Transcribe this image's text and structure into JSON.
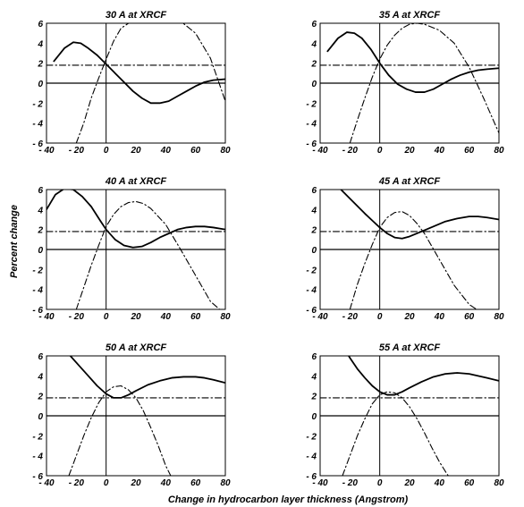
{
  "chart_data": {
    "type": "line",
    "ylabel": "Percent change",
    "xlabel": "Change in hydrocarbon layer thickness (Angstrom)",
    "xlim": [
      -40,
      80
    ],
    "ylim": [
      -6,
      6
    ],
    "xticks": [
      -40,
      -20,
      0,
      20,
      40,
      60,
      80
    ],
    "yticks": [
      6,
      4,
      2,
      0,
      -2,
      -4,
      -6
    ],
    "xtick_labels": [
      "- 40",
      "- 20",
      "0",
      "20",
      "40",
      "60",
      "80"
    ],
    "ytick_labels": [
      "6",
      "4",
      "2",
      "0",
      "- 2",
      "- 4",
      "- 6"
    ],
    "grid": false,
    "panels": [
      {
        "title": "30 A at XRCF",
        "series": [
          {
            "style": "solid",
            "x": [
              -35,
              -28,
              -22,
              -17,
              -12,
              -6,
              0,
              6,
              12,
              18,
              24,
              30,
              36,
              42,
              48,
              54,
              60,
              66,
              72,
              80
            ],
            "y": [
              2.2,
              3.5,
              4.1,
              4.0,
              3.5,
              2.8,
              1.9,
              1.0,
              0.1,
              -0.8,
              -1.5,
              -2.0,
              -2.0,
              -1.8,
              -1.3,
              -0.8,
              -0.3,
              0.1,
              0.3,
              0.4
            ]
          },
          {
            "style": "dashdot",
            "x": [
              -20,
              -15,
              -10,
              -5,
              0,
              5,
              10,
              15,
              20,
              30,
              40,
              50,
              60,
              70,
              80
            ],
            "y": [
              -6.0,
              -4.0,
              -1.5,
              0.5,
              2.4,
              4.2,
              5.5,
              6.0,
              6.5,
              6.6,
              6.5,
              6.2,
              5.0,
              2.5,
              -1.8
            ]
          },
          {
            "style": "dashdot",
            "x": [
              -40,
              80
            ],
            "y": [
              1.8,
              1.8
            ]
          }
        ]
      },
      {
        "title": "35 A at XRCF",
        "series": [
          {
            "style": "solid",
            "x": [
              -35,
              -28,
              -22,
              -17,
              -12,
              -6,
              0,
              6,
              12,
              18,
              24,
              30,
              36,
              42,
              48,
              54,
              60,
              66,
              72,
              80
            ],
            "y": [
              3.2,
              4.5,
              5.1,
              5.0,
              4.5,
              3.4,
              2.0,
              0.8,
              -0.1,
              -0.6,
              -0.9,
              -0.9,
              -0.6,
              -0.1,
              0.4,
              0.8,
              1.1,
              1.3,
              1.4,
              1.5
            ]
          },
          {
            "style": "dashdot",
            "x": [
              -20,
              -15,
              -10,
              -5,
              0,
              5,
              10,
              15,
              20,
              25,
              30,
              40,
              50,
              60,
              70,
              80
            ],
            "y": [
              -6.0,
              -3.7,
              -1.5,
              0.6,
              2.4,
              3.8,
              4.8,
              5.5,
              5.9,
              6.0,
              5.9,
              5.3,
              4.0,
              1.6,
              -1.6,
              -5.0
            ]
          },
          {
            "style": "dashdot",
            "x": [
              -40,
              80
            ],
            "y": [
              1.8,
              1.8
            ]
          }
        ]
      },
      {
        "title": "40 A at XRCF",
        "series": [
          {
            "style": "solid",
            "x": [
              -40,
              -34,
              -28,
              -22,
              -16,
              -10,
              -4,
              0,
              6,
              12,
              18,
              24,
              30,
              36,
              42,
              48,
              54,
              60,
              66,
              72,
              80
            ],
            "y": [
              4.0,
              5.5,
              6.1,
              6.0,
              5.3,
              4.3,
              2.9,
              2.0,
              1.0,
              0.4,
              0.2,
              0.3,
              0.7,
              1.2,
              1.6,
              2.0,
              2.2,
              2.3,
              2.3,
              2.2,
              2.0
            ]
          },
          {
            "style": "dashdot",
            "x": [
              -20,
              -15,
              -10,
              -5,
              0,
              5,
              10,
              15,
              20,
              25,
              30,
              40,
              50,
              60,
              70,
              80
            ],
            "y": [
              -6.0,
              -3.8,
              -1.6,
              0.4,
              2.3,
              3.5,
              4.3,
              4.7,
              4.8,
              4.6,
              4.1,
              2.5,
              0.0,
              -2.6,
              -5.2,
              -6.5
            ]
          },
          {
            "style": "dashdot",
            "x": [
              -40,
              80
            ],
            "y": [
              1.8,
              1.8
            ]
          }
        ]
      },
      {
        "title": "45 A at XRCF",
        "series": [
          {
            "style": "solid",
            "x": [
              -35,
              -28,
              -22,
              -16,
              -10,
              -5,
              0,
              5,
              10,
              15,
              20,
              28,
              36,
              44,
              52,
              60,
              66,
              72,
              80
            ],
            "y": [
              7.0,
              6.3,
              5.4,
              4.5,
              3.6,
              2.9,
              2.2,
              1.6,
              1.2,
              1.1,
              1.3,
              1.8,
              2.3,
              2.8,
              3.1,
              3.3,
              3.3,
              3.2,
              3.0
            ]
          },
          {
            "style": "dashdot",
            "x": [
              -20,
              -15,
              -10,
              -5,
              0,
              5,
              10,
              15,
              20,
              25,
              30,
              40,
              50,
              60,
              70
            ],
            "y": [
              -6.0,
              -3.5,
              -1.4,
              0.5,
              2.2,
              3.2,
              3.7,
              3.8,
              3.4,
              2.6,
              1.6,
              -1.0,
              -3.6,
              -5.5,
              -6.5
            ]
          },
          {
            "style": "dashdot",
            "x": [
              -40,
              80
            ],
            "y": [
              1.8,
              1.8
            ]
          }
        ]
      },
      {
        "title": "50 A at XRCF",
        "series": [
          {
            "style": "solid",
            "x": [
              -30,
              -24,
              -18,
              -12,
              -6,
              0,
              5,
              10,
              15,
              20,
              28,
              36,
              44,
              52,
              60,
              66,
              72,
              80
            ],
            "y": [
              7.0,
              6.0,
              5.0,
              4.0,
              3.0,
              2.2,
              1.8,
              1.8,
              2.1,
              2.5,
              3.1,
              3.5,
              3.8,
              3.9,
              3.9,
              3.8,
              3.6,
              3.3
            ]
          },
          {
            "style": "dashdot",
            "x": [
              -25,
              -20,
              -15,
              -10,
              -5,
              0,
              5,
              10,
              15,
              20,
              25,
              30,
              35,
              40,
              45
            ],
            "y": [
              -6.0,
              -4.0,
              -2.0,
              -0.2,
              1.3,
              2.4,
              2.9,
              3.0,
              2.6,
              1.8,
              0.5,
              -1.2,
              -3.0,
              -5.0,
              -6.5
            ]
          },
          {
            "style": "dashdot",
            "x": [
              -40,
              80
            ],
            "y": [
              1.8,
              1.8
            ]
          }
        ]
      },
      {
        "title": "55 A at XRCF",
        "series": [
          {
            "style": "solid",
            "x": [
              -25,
              -20,
              -15,
              -10,
              -5,
              0,
              5,
              10,
              15,
              20,
              28,
              36,
              44,
              52,
              60,
              66,
              72,
              80
            ],
            "y": [
              7.0,
              5.8,
              4.7,
              3.8,
              3.0,
              2.4,
              2.1,
              2.1,
              2.4,
              2.8,
              3.4,
              3.9,
              4.2,
              4.3,
              4.2,
              4.0,
              3.8,
              3.5
            ]
          },
          {
            "style": "dashdot",
            "x": [
              -25,
              -20,
              -15,
              -10,
              -5,
              0,
              5,
              10,
              15,
              20,
              25,
              30,
              35,
              40,
              45,
              50
            ],
            "y": [
              -6.0,
              -4.0,
              -2.0,
              -0.3,
              1.2,
              2.1,
              2.4,
              2.3,
              1.8,
              0.9,
              -0.3,
              -1.7,
              -3.2,
              -4.6,
              -5.8,
              -6.8
            ]
          },
          {
            "style": "dashdot",
            "x": [
              -40,
              80
            ],
            "y": [
              1.8,
              1.8
            ]
          }
        ]
      }
    ]
  }
}
